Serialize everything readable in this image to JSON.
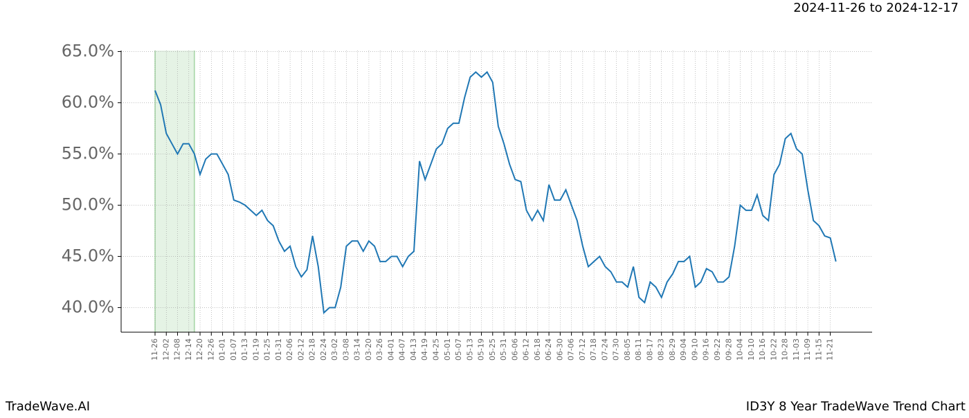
{
  "chart_data": {
    "type": "line",
    "date_range": "2024-11-26 to 2024-12-17",
    "brand": "TradeWave.AI",
    "chart_name": "ID3Y 8 Year TradeWave Trend Chart",
    "categories": [
      "11-26",
      null,
      "12-02",
      null,
      "12-08",
      null,
      "12-14",
      null,
      "12-20",
      null,
      "12-26",
      null,
      "01-01",
      null,
      "01-07",
      null,
      "01-13",
      null,
      "01-19",
      null,
      "01-25",
      null,
      "01-31",
      null,
      "02-06",
      null,
      "02-12",
      null,
      "02-18",
      null,
      "02-24",
      null,
      "03-02",
      null,
      "03-08",
      null,
      "03-14",
      null,
      "03-20",
      null,
      "03-26",
      null,
      "04-01",
      null,
      "04-07",
      null,
      "04-13",
      null,
      "04-19",
      null,
      "04-25",
      null,
      "05-01",
      null,
      "05-07",
      null,
      "05-13",
      null,
      "05-19",
      null,
      "05-25",
      null,
      "05-31",
      null,
      "06-06",
      null,
      "06-12",
      null,
      "06-18",
      null,
      "06-24",
      null,
      "06-30",
      null,
      "07-06",
      null,
      "07-12",
      null,
      "07-18",
      null,
      "07-24",
      null,
      "07-30",
      null,
      "08-05",
      null,
      "08-11",
      null,
      "08-17",
      null,
      "08-23",
      null,
      "08-29",
      null,
      "09-04",
      null,
      "09-10",
      null,
      "09-16",
      null,
      "09-22",
      null,
      "09-28",
      null,
      "10-04",
      null,
      "10-10",
      null,
      "10-16",
      null,
      "10-22",
      null,
      "10-28",
      null,
      "11-03",
      null,
      "11-09",
      null,
      "11-15",
      null,
      "11-21",
      null
    ],
    "series": [
      {
        "color": "#1f77b4",
        "values": [
          61.2,
          59.8,
          57,
          56,
          55,
          56,
          56,
          55,
          53,
          54.5,
          55,
          55,
          54,
          53,
          50.5,
          50.3,
          50,
          49.5,
          49,
          49.5,
          48.5,
          48,
          46.5,
          45.5,
          46,
          44,
          43,
          43.7,
          47,
          44,
          39.5,
          40,
          40,
          42,
          46,
          46.5,
          46.5,
          45.5,
          46.5,
          46,
          44.5,
          44.5,
          45,
          45,
          44,
          45,
          45.5,
          54.3,
          52.5,
          54,
          55.5,
          56,
          57.5,
          58,
          58,
          60.5,
          62.5,
          63,
          62.5,
          63,
          62,
          57.7,
          56,
          54,
          52.5,
          52.3,
          49.5,
          48.5,
          49.5,
          48.5,
          52,
          50.5,
          50.5,
          51.5,
          50,
          48.5,
          46,
          44,
          44.5,
          45,
          44,
          43.5,
          42.5,
          42.5,
          42,
          44,
          41,
          40.5,
          42.5,
          42,
          41,
          42.5,
          43.3,
          44.5,
          44.5,
          45,
          42,
          42.5,
          43.8,
          43.5,
          42.5,
          42.5,
          43,
          46,
          50,
          49.5,
          49.5,
          51,
          49,
          48.5,
          53,
          54,
          56.5,
          57,
          55.5,
          55,
          51.5,
          48.5,
          48,
          47,
          46.8,
          44.5
        ]
      }
    ],
    "highlight": {
      "from": 0,
      "to": 7,
      "color": "#2ca02c"
    },
    "ylim": [
      37.6,
      65.1
    ],
    "yticks": [
      {
        "value": 40,
        "label": "40.0%"
      },
      {
        "value": 45,
        "label": "45.0%"
      },
      {
        "value": 50,
        "label": "50.0%"
      },
      {
        "value": 55,
        "label": "55.0%"
      },
      {
        "value": 60,
        "label": "60.0%"
      },
      {
        "value": 65,
        "label": "65.0%"
      }
    ],
    "grid": true
  }
}
